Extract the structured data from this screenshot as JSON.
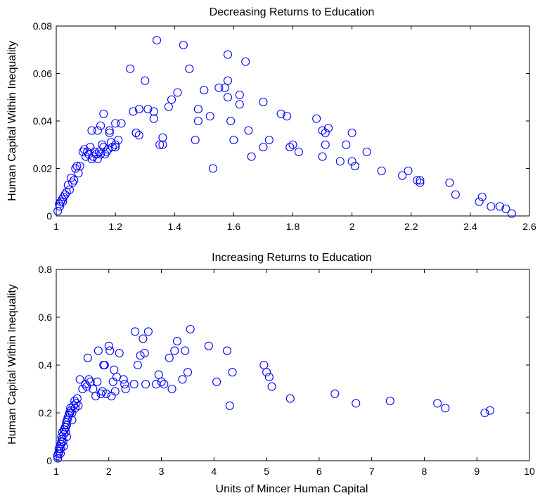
{
  "chart_data": [
    {
      "type": "scatter",
      "title": "Decreasing Returns to Education",
      "ylabel": "Human Capital Within Inequality",
      "xlabel": "",
      "xlim": [
        1,
        2.6
      ],
      "ylim": [
        0,
        0.08
      ],
      "xticks": [
        "1",
        "1.2",
        "1.4",
        "1.6",
        "1.8",
        "2",
        "2.2",
        "2.4",
        "2.6"
      ],
      "yticks": [
        "0",
        "0.02",
        "0.04",
        "0.06",
        "0.08"
      ],
      "marker_color": "#0000ff",
      "x": [
        1.005,
        1.01,
        1.012,
        1.015,
        1.02,
        1.022,
        1.025,
        1.03,
        1.035,
        1.04,
        1.045,
        1.05,
        1.055,
        1.06,
        1.065,
        1.07,
        1.075,
        1.08,
        1.09,
        1.095,
        1.1,
        1.105,
        1.11,
        1.115,
        1.12,
        1.125,
        1.13,
        1.135,
        1.14,
        1.145,
        1.15,
        1.155,
        1.16,
        1.165,
        1.17,
        1.175,
        1.18,
        1.185,
        1.19,
        1.2,
        1.21,
        1.22,
        1.25,
        1.26,
        1.27,
        1.28,
        1.3,
        1.31,
        1.33,
        1.34,
        1.35,
        1.36,
        1.38,
        1.39,
        1.43,
        1.45,
        1.47,
        1.48,
        1.5,
        1.52,
        1.55,
        1.58,
        1.58,
        1.59,
        1.6,
        1.62,
        1.64,
        1.65,
        1.7,
        1.72,
        1.76,
        1.78,
        1.8,
        1.82,
        1.88,
        1.9,
        1.91,
        1.92,
        1.96,
        1.98,
        2.0,
        2.01,
        2.05,
        2.1,
        2.17,
        2.19,
        2.22,
        2.23,
        2.33,
        2.35,
        2.43,
        2.44,
        2.47,
        2.5,
        2.52,
        2.54,
        1.14,
        1.16,
        1.18,
        1.2,
        1.28,
        1.36,
        1.48,
        1.53,
        1.58,
        1.62,
        1.7,
        1.79,
        1.91,
        2.0,
        2.23,
        1.33,
        1.41,
        1.57,
        1.66,
        1.9,
        1.2,
        1.27,
        1.15,
        1.12
      ],
      "y": [
        0.002,
        0.005,
        0.004,
        0.006,
        0.007,
        0.006,
        0.008,
        0.009,
        0.01,
        0.013,
        0.011,
        0.016,
        0.014,
        0.015,
        0.02,
        0.021,
        0.018,
        0.021,
        0.027,
        0.028,
        0.025,
        0.027,
        0.026,
        0.029,
        0.024,
        0.025,
        0.027,
        0.026,
        0.024,
        0.027,
        0.026,
        0.03,
        0.029,
        0.026,
        0.027,
        0.028,
        0.035,
        0.031,
        0.029,
        0.03,
        0.032,
        0.039,
        0.062,
        0.044,
        0.035,
        0.034,
        0.057,
        0.045,
        0.041,
        0.074,
        0.03,
        0.033,
        0.046,
        0.049,
        0.072,
        0.062,
        0.032,
        0.04,
        0.053,
        0.042,
        0.054,
        0.068,
        0.057,
        0.04,
        0.032,
        0.047,
        0.065,
        0.036,
        0.029,
        0.032,
        0.043,
        0.042,
        0.03,
        0.027,
        0.041,
        0.025,
        0.035,
        0.037,
        0.023,
        0.03,
        0.023,
        0.021,
        0.027,
        0.019,
        0.017,
        0.019,
        0.015,
        0.014,
        0.014,
        0.009,
        0.006,
        0.008,
        0.004,
        0.004,
        0.003,
        0.001,
        0.036,
        0.043,
        0.036,
        0.029,
        0.045,
        0.03,
        0.045,
        0.02,
        0.05,
        0.051,
        0.048,
        0.029,
        0.03,
        0.035,
        0.015,
        0.044,
        0.052,
        0.054,
        0.025,
        0.036,
        0.039,
        0.035,
        0.038,
        0.036
      ]
    },
    {
      "type": "scatter",
      "title": "Increasing Returns to Education",
      "ylabel": "Human Capital Within Inequality",
      "xlabel": "Units of Mincer Human Capital",
      "xlim": [
        1,
        10
      ],
      "ylim": [
        0,
        0.8
      ],
      "xticks": [
        "1",
        "2",
        "3",
        "4",
        "5",
        "6",
        "7",
        "8",
        "9",
        "10"
      ],
      "yticks": [
        "0",
        "0.2",
        "0.4",
        "0.6",
        "0.8"
      ],
      "marker_color": "#0000ff",
      "x": [
        1.02,
        1.04,
        1.05,
        1.07,
        1.08,
        1.1,
        1.12,
        1.13,
        1.15,
        1.17,
        1.18,
        1.2,
        1.22,
        1.25,
        1.27,
        1.3,
        1.33,
        1.35,
        1.38,
        1.4,
        1.45,
        1.5,
        1.55,
        1.6,
        1.65,
        1.7,
        1.75,
        1.8,
        1.85,
        1.9,
        1.95,
        2.0,
        2.05,
        2.1,
        2.15,
        2.2,
        2.3,
        2.5,
        2.55,
        2.6,
        2.65,
        2.7,
        2.75,
        2.9,
        2.95,
        3.05,
        3.15,
        3.2,
        3.25,
        3.3,
        3.4,
        3.45,
        3.5,
        3.9,
        4.05,
        4.25,
        4.3,
        4.35,
        4.95,
        5.0,
        5.05,
        5.1,
        5.45,
        6.3,
        6.7,
        7.35,
        8.25,
        8.4,
        9.15,
        9.25,
        1.06,
        1.09,
        1.11,
        1.14,
        1.16,
        1.19,
        1.21,
        1.24,
        1.28,
        1.36,
        1.42,
        1.58,
        1.78,
        1.88,
        2.02,
        2.12,
        2.28,
        2.48,
        2.68,
        3.0,
        3.55,
        1.03,
        1.08,
        1.14,
        1.2,
        1.3,
        1.1,
        1.18,
        1.26,
        1.62,
        1.92,
        2.08,
        2.32
      ],
      "y": [
        0.02,
        0.03,
        0.05,
        0.06,
        0.05,
        0.1,
        0.12,
        0.08,
        0.13,
        0.14,
        0.12,
        0.15,
        0.18,
        0.2,
        0.22,
        0.2,
        0.23,
        0.25,
        0.24,
        0.26,
        0.34,
        0.3,
        0.32,
        0.43,
        0.33,
        0.3,
        0.27,
        0.46,
        0.28,
        0.4,
        0.28,
        0.48,
        0.27,
        0.38,
        0.35,
        0.45,
        0.32,
        0.54,
        0.4,
        0.44,
        0.51,
        0.32,
        0.54,
        0.32,
        0.36,
        0.32,
        0.43,
        0.3,
        0.46,
        0.5,
        0.34,
        0.46,
        0.37,
        0.48,
        0.33,
        0.46,
        0.23,
        0.37,
        0.4,
        0.37,
        0.35,
        0.31,
        0.26,
        0.28,
        0.24,
        0.25,
        0.24,
        0.22,
        0.2,
        0.21,
        0.04,
        0.07,
        0.09,
        0.11,
        0.13,
        0.16,
        0.17,
        0.19,
        0.21,
        0.22,
        0.23,
        0.31,
        0.33,
        0.29,
        0.46,
        0.29,
        0.34,
        0.32,
        0.45,
        0.33,
        0.55,
        0.01,
        0.03,
        0.06,
        0.1,
        0.17,
        0.08,
        0.14,
        0.2,
        0.34,
        0.4,
        0.33,
        0.3
      ]
    }
  ]
}
